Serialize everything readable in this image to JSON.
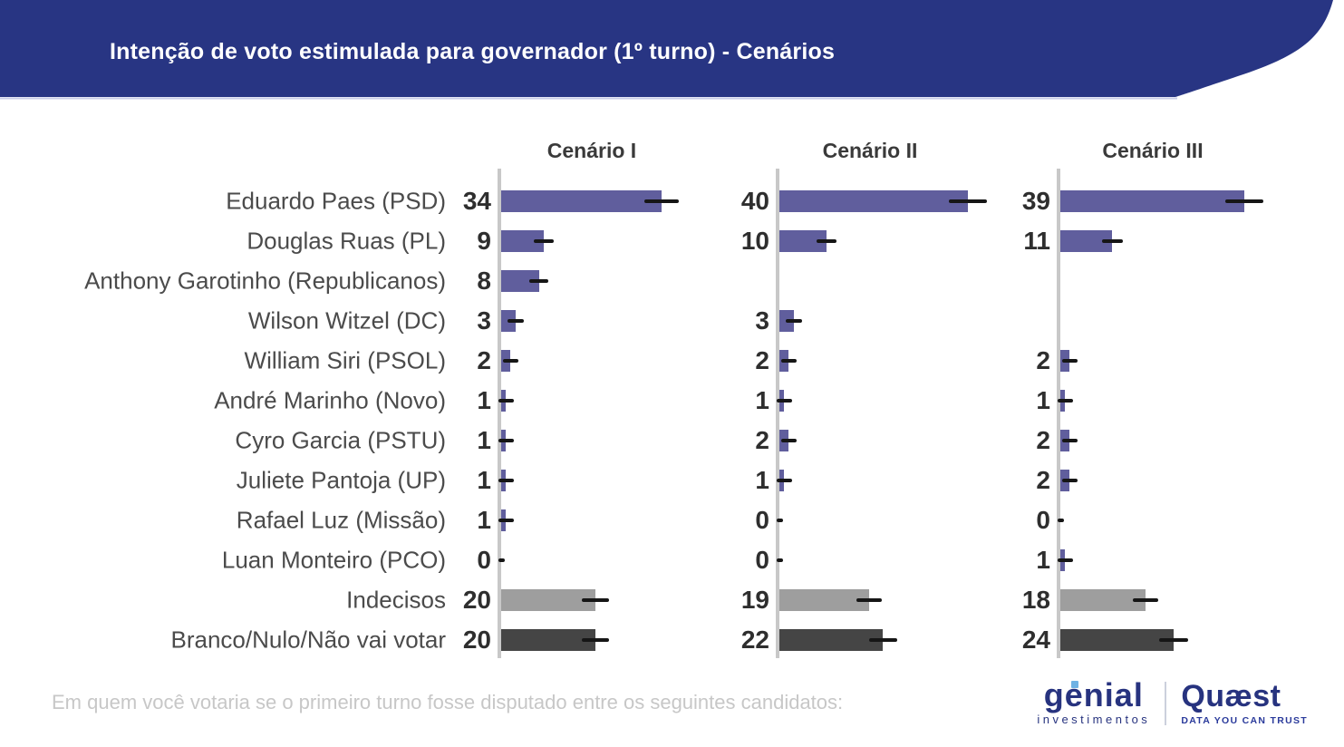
{
  "header": {
    "title": "Intenção de voto estimulada para governador (1º turno) - Cenários"
  },
  "footer": {
    "question": "Em quem você votaria se o primeiro turno fosse disputado entre os seguintes candidatos:",
    "logos": {
      "genial": "genial",
      "genial_sub": "investimentos",
      "quaest": "Quæst",
      "quaest_tagline": "DATA YOU CAN TRUST"
    }
  },
  "colors": {
    "banner": "#283583",
    "banner_hairline": "#c9cde8",
    "bar_candidate": "#605e9d",
    "bar_undecided": "#9e9e9e",
    "bar_blank_null": "#454545",
    "axis": "#c8c8c8",
    "error_bar": "#161616"
  },
  "chart_data": {
    "type": "bar",
    "orientation": "horizontal",
    "title": "Intenção de voto estimulada para governador (1º turno) - Cenários",
    "subtitle_question": "Em quem você votaria se o primeiro turno fosse disputado entre os seguintes candidatos:",
    "units": "percent",
    "xlim": [
      0,
      45
    ],
    "grid": false,
    "legend_position": "column-headers-top",
    "error_bars": true,
    "categories": [
      "Eduardo Paes (PSD)",
      "Douglas Ruas (PL)",
      "Anthony Garotinho (Republicanos)",
      "Wilson Witzel (DC)",
      "William Siri (PSOL)",
      "André Marinho (Novo)",
      "Cyro Garcia (PSTU)",
      "Juliete Pantoja (UP)",
      "Rafael Luz (Missão)",
      "Luan Monteiro (PCO)",
      "Indecisos",
      "Branco/Nulo/Não vai votar"
    ],
    "row_types": [
      "candidate",
      "candidate",
      "candidate",
      "candidate",
      "candidate",
      "candidate",
      "candidate",
      "candidate",
      "candidate",
      "candidate",
      "undecided",
      "blank_null"
    ],
    "series": [
      {
        "name": "Cenário I",
        "values": [
          34,
          9,
          8,
          3,
          2,
          1,
          1,
          1,
          1,
          0,
          20,
          20
        ]
      },
      {
        "name": "Cenário II",
        "values": [
          40,
          10,
          null,
          3,
          2,
          1,
          2,
          1,
          0,
          0,
          19,
          22
        ]
      },
      {
        "name": "Cenário III",
        "values": [
          39,
          11,
          null,
          null,
          2,
          1,
          2,
          2,
          0,
          1,
          18,
          24
        ]
      }
    ]
  }
}
